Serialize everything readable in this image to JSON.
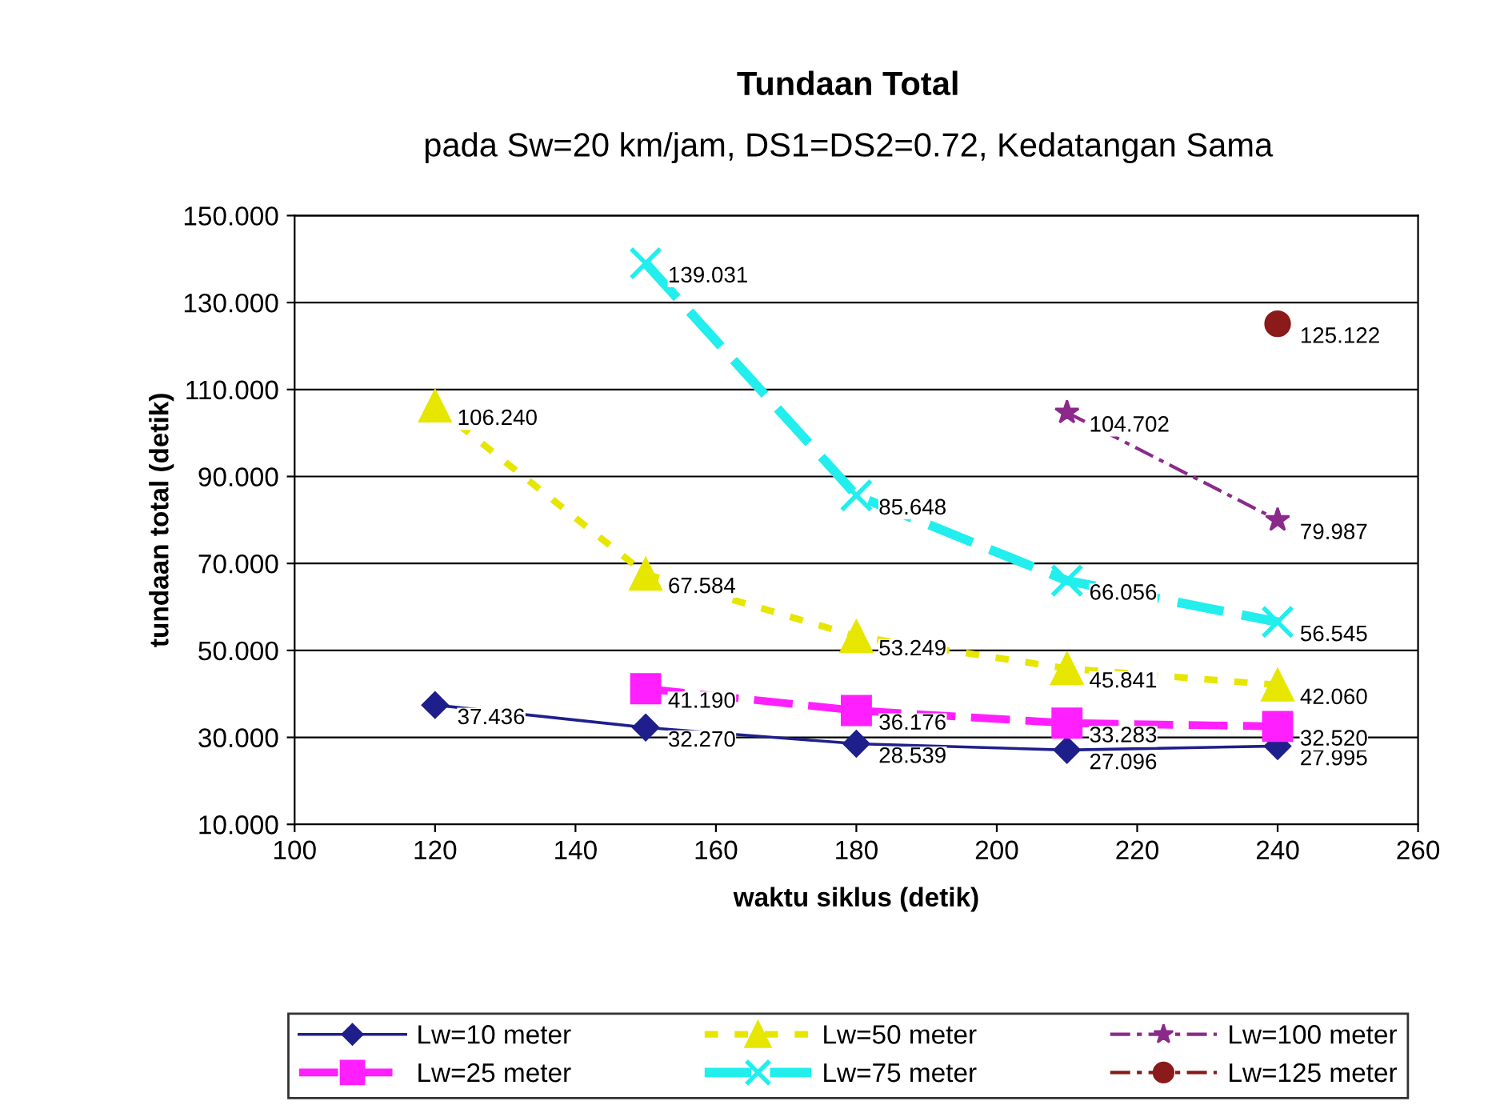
{
  "chart_data": {
    "type": "line",
    "title": "Tundaan Total",
    "subtitle": "pada Sw=20 km/jam, DS1=DS2=0.72, Kedatangan Sama",
    "xlabel": "waktu siklus (detik)",
    "ylabel": "tundaan total (detik)",
    "xlim": [
      100,
      260
    ],
    "xticks": [
      100,
      120,
      140,
      160,
      180,
      200,
      220,
      240,
      260
    ],
    "ylim": [
      10,
      150
    ],
    "yticks": [
      {
        "value": 10,
        "label": "10.000"
      },
      {
        "value": 30,
        "label": "30.000"
      },
      {
        "value": 50,
        "label": "50.000"
      },
      {
        "value": 70,
        "label": "70.000"
      },
      {
        "value": 90,
        "label": "90.000"
      },
      {
        "value": 110,
        "label": "110.000"
      },
      {
        "value": 130,
        "label": "130.000"
      },
      {
        "value": 150,
        "label": "150.000"
      }
    ],
    "grid": "y",
    "legend": "bottom",
    "series": [
      {
        "name": "Lw=10 meter",
        "color": "#1f1f8c",
        "marker": "diamond",
        "line_style": "solid",
        "x": [
          120,
          150,
          180,
          210,
          240
        ],
        "values": [
          37.436,
          32.27,
          28.539,
          27.096,
          27.995
        ],
        "value_labels": [
          "37.436",
          "32.270",
          "28.539",
          "27.096",
          "27.995"
        ]
      },
      {
        "name": "Lw=25 meter",
        "color": "#ff1fff",
        "marker": "square",
        "line_style": "dashed",
        "x": [
          150,
          180,
          210,
          240
        ],
        "values": [
          41.19,
          36.176,
          33.283,
          32.52
        ],
        "value_labels": [
          "41.190",
          "36.176",
          "33.283",
          "32.520"
        ]
      },
      {
        "name": "Lw=50 meter",
        "color": "#e6e600",
        "marker": "triangle",
        "line_style": "dotted",
        "x": [
          120,
          150,
          180,
          210,
          240
        ],
        "values": [
          106.24,
          67.584,
          53.249,
          45.841,
          42.06
        ],
        "value_labels": [
          "106.240",
          "67.584",
          "53.249",
          "45.841",
          "42.060"
        ]
      },
      {
        "name": "Lw=75 meter",
        "color": "#22eeee",
        "marker": "cross",
        "line_style": "dashed",
        "x": [
          150,
          180,
          210,
          240
        ],
        "values": [
          139.031,
          85.648,
          66.056,
          56.545
        ],
        "value_labels": [
          "139.031",
          "85.648",
          "66.056",
          "56.545"
        ]
      },
      {
        "name": "Lw=100 meter",
        "color": "#8b2a8b",
        "marker": "star",
        "line_style": "dashdot",
        "x": [
          210,
          240
        ],
        "values": [
          104.702,
          79.987
        ],
        "value_labels": [
          "104.702",
          "79.987"
        ]
      },
      {
        "name": "Lw=125 meter",
        "color": "#8b1a1a",
        "marker": "circle",
        "line_style": "dashdot",
        "x": [
          240
        ],
        "values": [
          125.122
        ],
        "value_labels": [
          "125.122"
        ]
      }
    ]
  }
}
